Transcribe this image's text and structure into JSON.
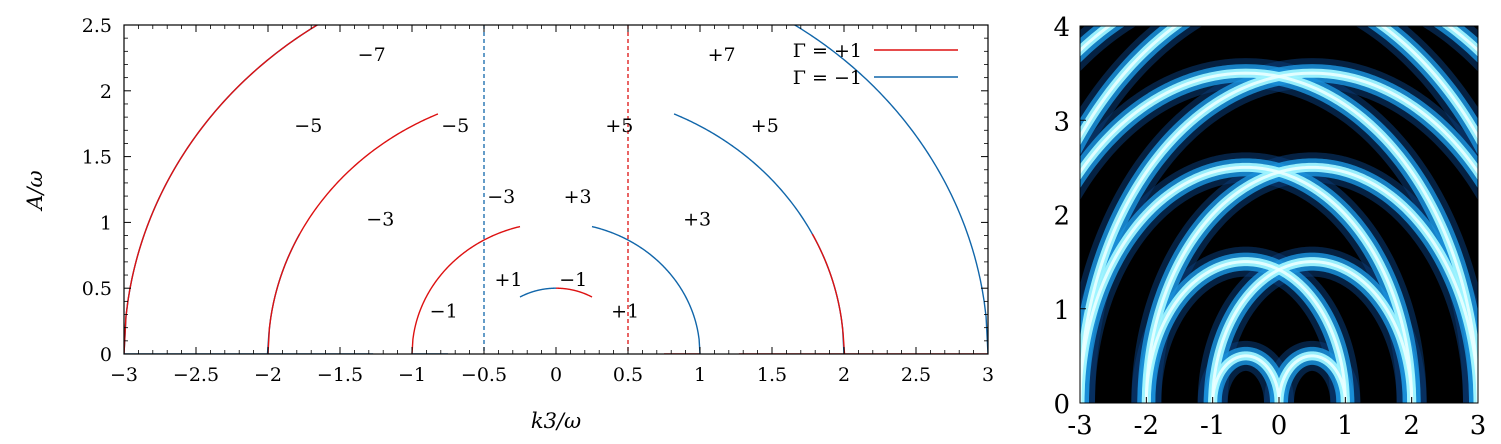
{
  "chart_data": [
    {
      "type": "line",
      "title": "",
      "xlabel": "k3/ω",
      "ylabel": "A/ω",
      "xlim": [
        -3,
        3
      ],
      "ylim": [
        0,
        2.5
      ],
      "xticks": [
        -3,
        -2.5,
        -2,
        -1.5,
        -1,
        -0.5,
        0,
        0.5,
        1,
        1.5,
        2,
        2.5,
        3
      ],
      "xtick_labels": [
        "−3",
        "−2.5",
        "−2",
        "−1.5",
        "−1",
        "−0.5",
        "0",
        "0.5",
        "1",
        "1.5",
        "2",
        "2.5",
        "3"
      ],
      "yticks": [
        0,
        0.5,
        1,
        1.5,
        2,
        2.5
      ],
      "ytick_labels": [
        "0",
        "0.5",
        "1",
        "1.5",
        "2",
        "2.5"
      ],
      "legend": {
        "placement": "top-right",
        "entries": [
          {
            "label": "Γ = +1",
            "color": "#dd1111"
          },
          {
            "label": "Γ = −1",
            "color": "#1166aa"
          }
        ]
      },
      "vertical_lines": [
        {
          "x": -0.5,
          "color": "#1166aa",
          "style": "dashed"
        },
        {
          "x": 0.5,
          "color": "#dd1111",
          "style": "dashed"
        }
      ],
      "series": [
        {
          "color": "#1166aa",
          "center": 0,
          "radius": 3,
          "x_range": [
            -3,
            -1.27
          ]
        },
        {
          "color": "#dd1111",
          "center": 0,
          "radius": 3,
          "x_range": [
            -3,
            -1.39
          ]
        },
        {
          "color": "#1166aa",
          "center": 0,
          "radius": 2,
          "x_range": [
            -3,
            -1.78
          ]
        },
        {
          "color": "#dd1111",
          "center": 0,
          "radius": 2,
          "x_range": [
            -2,
            -0.82
          ]
        },
        {
          "color": "#1166aa",
          "center": 0,
          "radius": 1,
          "x_range": [
            -2,
            -1.27
          ]
        },
        {
          "color": "#dd1111",
          "center": 0,
          "radius": 1,
          "x_range": [
            -1,
            -0.25
          ]
        },
        {
          "color": "#1166aa",
          "center": 0,
          "radius": 0.5,
          "x_range": [
            -1,
            -0.75
          ]
        },
        {
          "color": "#1166aa",
          "center": 0,
          "radius": 0.5,
          "x_range": [
            -0.25,
            0
          ]
        },
        {
          "color": "#dd1111",
          "center": 0,
          "radius": 0.5,
          "x_range": [
            0,
            0.25
          ]
        },
        {
          "color": "#1166aa",
          "center": 0,
          "radius": 1,
          "x_range": [
            0.25,
            1
          ]
        },
        {
          "color": "#dd1111",
          "center": 0,
          "radius": 0.5,
          "x_range": [
            0.75,
            1
          ]
        },
        {
          "color": "#1166aa",
          "center": 0,
          "radius": 2,
          "x_range": [
            0.82,
            2
          ]
        },
        {
          "color": "#dd1111",
          "center": 0,
          "radius": 1,
          "x_range": [
            1.27,
            2
          ]
        },
        {
          "color": "#1166aa",
          "center": 0,
          "radius": 3,
          "x_range": [
            1.39,
            3
          ]
        },
        {
          "color": "#dd1111",
          "center": 0,
          "radius": 2,
          "x_range": [
            1.78,
            3
          ]
        }
      ],
      "annotations": [
        {
          "text": "−7",
          "x": -1.28,
          "y": 2.28
        },
        {
          "text": "−5",
          "x": -1.72,
          "y": 1.74
        },
        {
          "text": "−5",
          "x": -0.7,
          "y": 1.74
        },
        {
          "text": "−3",
          "x": -1.22,
          "y": 1.03
        },
        {
          "text": "−3",
          "x": -0.38,
          "y": 1.2
        },
        {
          "text": "+3",
          "x": 0.15,
          "y": 1.2
        },
        {
          "text": "+1",
          "x": -0.33,
          "y": 0.57
        },
        {
          "text": "−1",
          "x": 0.12,
          "y": 0.57
        },
        {
          "text": "−1",
          "x": -0.78,
          "y": 0.33
        },
        {
          "text": "+1",
          "x": 0.48,
          "y": 0.33
        },
        {
          "text": "+3",
          "x": 0.98,
          "y": 1.03
        },
        {
          "text": "+5",
          "x": 0.44,
          "y": 1.74
        },
        {
          "text": "+5",
          "x": 1.45,
          "y": 1.74
        },
        {
          "text": "+7",
          "x": 1.15,
          "y": 2.28
        }
      ]
    },
    {
      "type": "heatmap",
      "title": "",
      "xlim": [
        -3,
        3
      ],
      "ylim": [
        0,
        4
      ],
      "xticks": [
        -3,
        -2,
        -1,
        0,
        1,
        2,
        3
      ],
      "xtick_labels": [
        "-3",
        "-2",
        "-1",
        "0",
        "1",
        "2",
        "3"
      ],
      "yticks": [
        0,
        1,
        2,
        3,
        4
      ],
      "ytick_labels": [
        "0",
        "1",
        "2",
        "3",
        "4"
      ],
      "colormap": [
        "#000000",
        "#0a3d78",
        "#1a8fd8",
        "#9ff4ff"
      ],
      "bright_arcs": [
        {
          "center": -0.5,
          "radius": 0.5
        },
        {
          "center": 0.5,
          "radius": 0.5
        },
        {
          "center": -0.5,
          "radius": 1.5
        },
        {
          "center": 0.5,
          "radius": 1.5
        },
        {
          "center": -0.5,
          "radius": 2.5
        },
        {
          "center": 0.5,
          "radius": 2.5
        },
        {
          "center": -0.5,
          "radius": 3.5
        },
        {
          "center": 0.5,
          "radius": 3.5
        },
        {
          "center": -0.5,
          "radius": 4.5
        },
        {
          "center": 0.5,
          "radius": 4.5
        }
      ]
    }
  ]
}
